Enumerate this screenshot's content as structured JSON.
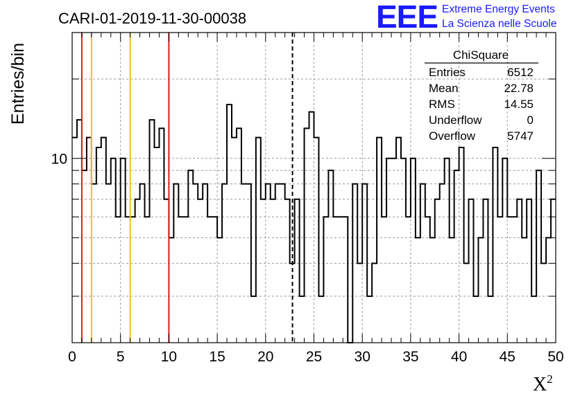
{
  "chart_data": {
    "type": "bar",
    "style": "step-histogram",
    "title": "CARI-01-2019-11-30-00038",
    "xlabel": "X",
    "xlabel_sup": "2",
    "ylabel": "Entries/bin",
    "xlim": [
      0,
      50
    ],
    "ylim": [
      2,
      30
    ],
    "yscale": "log",
    "bin_width": 0.5,
    "xticks": [
      "0",
      "5",
      "10",
      "15",
      "20",
      "25",
      "30",
      "35",
      "40",
      "45",
      "50"
    ],
    "yticks": [
      {
        "value": 10,
        "label": "10"
      }
    ],
    "grid": true,
    "bin_values": [
      12,
      14,
      9,
      12,
      8,
      11,
      12,
      8,
      10,
      6,
      10,
      6,
      6,
      7,
      8,
      6,
      14,
      11,
      13,
      7,
      5,
      8,
      6,
      6,
      9,
      8,
      7,
      8,
      6,
      6,
      5,
      8,
      16,
      12,
      13,
      8,
      8,
      3,
      12,
      7,
      8,
      7,
      8,
      8,
      7,
      4,
      7,
      3,
      13,
      15,
      12,
      3,
      6,
      9,
      6,
      6,
      6,
      2,
      8,
      4,
      8,
      3,
      4,
      12,
      6,
      10,
      10,
      12,
      10,
      6,
      10,
      5,
      8,
      6,
      5,
      7,
      8,
      10,
      5,
      9,
      11,
      4,
      7,
      3,
      5,
      7,
      3,
      11,
      6,
      10,
      6,
      6,
      7,
      5,
      7,
      3,
      9,
      4,
      5,
      7
    ]
  },
  "vertical_lines": [
    {
      "x": 1,
      "color": "#e01c1c",
      "style": "solid"
    },
    {
      "x": 2,
      "color": "#f2c21b",
      "style": "solid"
    },
    {
      "x": 6,
      "color": "#f2c21b",
      "style": "solid"
    },
    {
      "x": 10,
      "color": "#e01c1c",
      "style": "solid"
    },
    {
      "x": 22.78,
      "color": "#000000",
      "style": "dashed"
    }
  ],
  "stats_box": {
    "title": "ChiSquare",
    "rows": [
      {
        "label": "Entries",
        "value": "6512"
      },
      {
        "label": "Mean",
        "value": "22.78"
      },
      {
        "label": "RMS",
        "value": "14.55"
      },
      {
        "label": "Underflow",
        "value": "0"
      },
      {
        "label": "Overflow",
        "value": "5747"
      }
    ]
  },
  "logo": {
    "mark": "EEE",
    "line1": "Extreme Energy Events",
    "line2": "La Scienza nelle Scuole",
    "color": "#1a1aff"
  }
}
